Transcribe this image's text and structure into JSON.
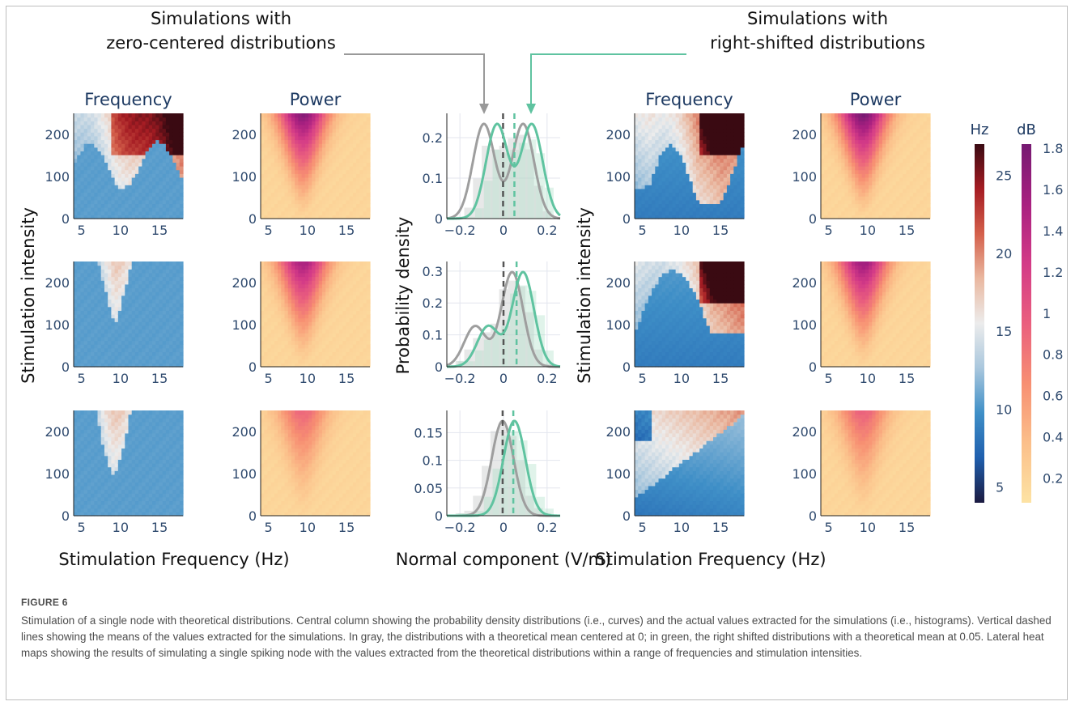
{
  "figure": {
    "annotations": {
      "left": [
        "Simulations with",
        "zero-centered distributions"
      ],
      "right": [
        "Simulations with",
        "right-shifted distributions"
      ]
    },
    "caption_label": "FIGURE 6",
    "caption_text": "Stimulation of a single node with theoretical distributions. Central column showing the probability density distributions (i.e., curves) and the actual values extracted for the simulations (i.e., histograms). Vertical dashed lines showing the means of the values extracted for the simulations. In gray, the distributions with a theoretical mean centered at 0; in green, the right shifted distributions with a theoretical mean at 0.05. Lateral heat maps showing the results of simulating a single spiking node with the values extracted from the theoretical distributions within a range of frequencies and stimulation intensities."
  },
  "chart_data": [
    {
      "type": "heatmap",
      "group": "zero-centered",
      "column_title": "Frequency",
      "xlabel": "Stimulation Frequency (Hz)",
      "ylabel": "Stimulation intensity",
      "x_ticks": [
        5,
        10,
        15
      ],
      "y_ticks": [
        0,
        100,
        200
      ],
      "xlim": [
        4,
        18
      ],
      "ylim": [
        0,
        250
      ],
      "rows": 3,
      "colorbar": "Hz"
    },
    {
      "type": "heatmap",
      "group": "zero-centered",
      "column_title": "Power",
      "xlabel": "Stimulation Frequency (Hz)",
      "x_ticks": [
        5,
        10,
        15
      ],
      "y_ticks": [
        0,
        100,
        200
      ],
      "xlim": [
        4,
        18
      ],
      "ylim": [
        0,
        250
      ],
      "rows": 3,
      "colorbar": "dB"
    },
    {
      "type": "line",
      "xlabel": "Normal component (V/m)",
      "ylabel": "Probability density",
      "x_ticks": [
        -0.2,
        0,
        0.2
      ],
      "x_tick_labels": [
        "−0.2",
        "0",
        "0.2"
      ],
      "xlim": [
        -0.26,
        0.26
      ],
      "panels": [
        {
          "ylim": [
            0,
            0.26
          ],
          "y_ticks": [
            0,
            0.1,
            0.2
          ],
          "y_tick_labels": [
            "0",
            "0.1",
            "0.2"
          ],
          "series": [
            {
              "name": "zero-centered",
              "color": "#9e9e9e",
              "mean": -0.002,
              "components": [
                [
                  0.5,
                  -0.09,
                  0.05
                ],
                [
                  0.5,
                  0.09,
                  0.05
                ]
              ]
            },
            {
              "name": "right-shifted",
              "color": "#5fc3a0",
              "mean": 0.05,
              "components": [
                [
                  0.5,
                  -0.03,
                  0.05
                ],
                [
                  0.5,
                  0.13,
                  0.05
                ]
              ]
            }
          ],
          "hist": [
            0.005,
            0.03,
            0.11,
            0.2,
            0.19,
            0.2,
            0.22,
            0.23,
            0.19,
            0.09,
            0.02
          ]
        },
        {
          "ylim": [
            0,
            0.33
          ],
          "y_ticks": [
            0,
            0.1,
            0.2,
            0.3
          ],
          "y_tick_labels": [
            "0",
            "0.1",
            "0.2",
            "0.3"
          ],
          "series": [
            {
              "name": "zero-centered",
              "color": "#9e9e9e",
              "mean": 0.0,
              "components": [
                [
                  0.3,
                  -0.13,
                  0.05
                ],
                [
                  0.7,
                  0.04,
                  0.05
                ]
              ]
            },
            {
              "name": "right-shifted",
              "color": "#5fc3a0",
              "mean": 0.06,
              "components": [
                [
                  0.3,
                  -0.07,
                  0.05
                ],
                [
                  0.7,
                  0.09,
                  0.05
                ]
              ]
            }
          ],
          "hist": [
            0.02,
            0.06,
            0.1,
            0.12,
            0.15,
            0.27,
            0.3,
            0.28,
            0.19,
            0.06,
            0.01
          ]
        },
        {
          "ylim": [
            0,
            0.19
          ],
          "y_ticks": [
            0,
            0.05,
            0.1,
            0.15
          ],
          "y_tick_labels": [
            "0",
            "0.05",
            "0.1",
            "0.15"
          ],
          "series": [
            {
              "name": "zero-centered",
              "color": "#9e9e9e",
              "mean": -0.004,
              "components": [
                [
                  1,
                  -0.004,
                  0.05
                ]
              ]
            },
            {
              "name": "right-shifted",
              "color": "#5fc3a0",
              "mean": 0.045,
              "components": [
                [
                  1,
                  0.05,
                  0.05
                ]
              ]
            }
          ],
          "hist": [
            0.005,
            0.01,
            0.04,
            0.1,
            0.17,
            0.18,
            0.16,
            0.11,
            0.04,
            0.015,
            0.005
          ]
        }
      ]
    },
    {
      "type": "heatmap",
      "group": "right-shifted",
      "column_title": "Frequency",
      "xlabel": "Stimulation Frequency (Hz)",
      "ylabel": "Stimulation intensity",
      "x_ticks": [
        5,
        10,
        15
      ],
      "y_ticks": [
        0,
        100,
        200
      ],
      "xlim": [
        4,
        18
      ],
      "ylim": [
        0,
        250
      ],
      "rows": 3,
      "colorbar": "Hz"
    },
    {
      "type": "heatmap",
      "group": "right-shifted",
      "column_title": "Power",
      "xlabel": "Stimulation Frequency (Hz)",
      "x_ticks": [
        5,
        10,
        15
      ],
      "y_ticks": [
        0,
        100,
        200
      ],
      "xlim": [
        4,
        18
      ],
      "ylim": [
        0,
        250
      ],
      "rows": 3,
      "colorbar": "dB"
    },
    {
      "type": "colorbar",
      "title": "Hz",
      "ticks": [
        5,
        10,
        15,
        20,
        25
      ],
      "range": [
        4,
        27
      ],
      "colors": [
        "#1b1a40",
        "#1f5fae",
        "#3f8fc7",
        "#a9c7dd",
        "#ececec",
        "#eab8a0",
        "#d4604b",
        "#a51c23",
        "#3a0a12"
      ]
    },
    {
      "type": "colorbar",
      "title": "dB",
      "ticks": [
        0.2,
        0.4,
        0.6,
        0.8,
        1,
        1.2,
        1.4,
        1.6,
        1.8
      ],
      "tick_labels": [
        "0.2",
        "0.4",
        "0.6",
        "0.8",
        "1",
        "1.2",
        "1.4",
        "1.6",
        "1.8"
      ],
      "range": [
        0.08,
        1.82
      ],
      "colors": [
        "#fde3a4",
        "#fbbf8a",
        "#f78f72",
        "#ea5f7e",
        "#d33a87",
        "#a82080",
        "#761a72"
      ]
    }
  ]
}
